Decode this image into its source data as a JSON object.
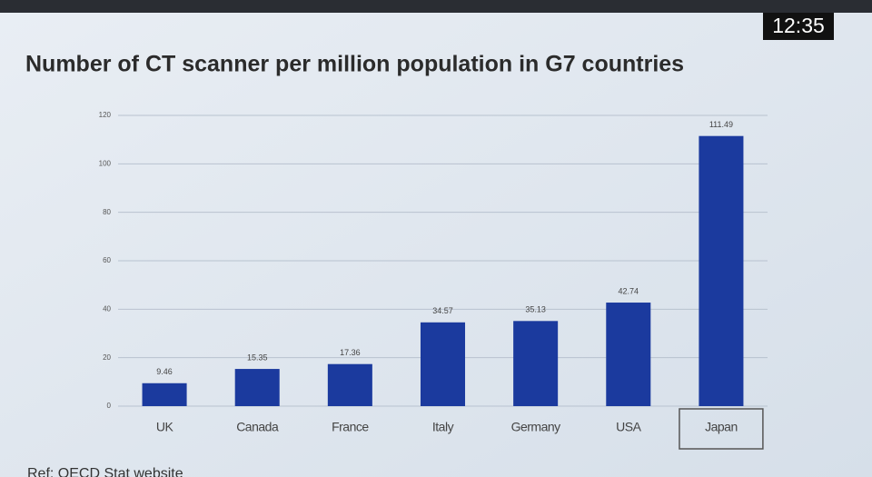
{
  "timestamp": "12:35",
  "source": "Ref: OECD Stat website",
  "chart_data": {
    "type": "bar",
    "title": "Number of CT scanner per million population in G7 countries",
    "categories": [
      "UK",
      "Canada",
      "France",
      "Italy",
      "Germany",
      "USA",
      "Japan"
    ],
    "values": [
      9.46,
      15.35,
      17.36,
      34.57,
      35.13,
      42.74,
      111.49
    ],
    "color": "#1b3a9e",
    "ylim": [
      0,
      120
    ],
    "yticks": [
      0,
      20,
      40,
      60,
      80,
      100,
      120
    ],
    "grid": true
  }
}
